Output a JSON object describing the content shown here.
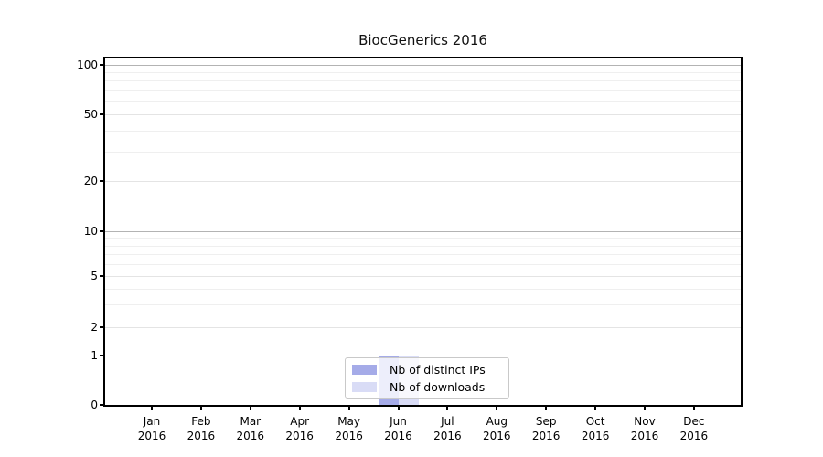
{
  "chart_data": {
    "type": "bar",
    "title": "BiocGenerics 2016",
    "categories": [
      "Jan 2016",
      "Feb 2016",
      "Mar 2016",
      "Apr 2016",
      "May 2016",
      "Jun 2016",
      "Jul 2016",
      "Aug 2016",
      "Sep 2016",
      "Oct 2016",
      "Nov 2016",
      "Dec 2016"
    ],
    "series": [
      {
        "name": "Nb of distinct IPs",
        "color": "#a5abe8",
        "values": [
          0,
          0,
          0,
          0,
          0,
          1,
          0,
          0,
          0,
          0,
          0,
          0
        ]
      },
      {
        "name": "Nb of downloads",
        "color": "#d9dcf6",
        "values": [
          0,
          0,
          0,
          0,
          0,
          1,
          0,
          0,
          0,
          0,
          0,
          0
        ]
      }
    ],
    "xlabel": "",
    "ylabel": "",
    "yticks": [
      0,
      1,
      2,
      5,
      10,
      20,
      50,
      100
    ],
    "ylim": [
      0,
      110
    ],
    "yscale": "log-like (0 then log spacing of 1,2,5,10,20,50,100)",
    "grid": "horizontal major and faint log-minor lines",
    "legend_position": "lower center inside plot",
    "colors": {
      "axis": "#000000",
      "grid_major": "#b3b3b3",
      "grid_light": "#e4e4e4",
      "grid_minor": "#efefef",
      "legend_border": "#c9c9c9"
    }
  }
}
